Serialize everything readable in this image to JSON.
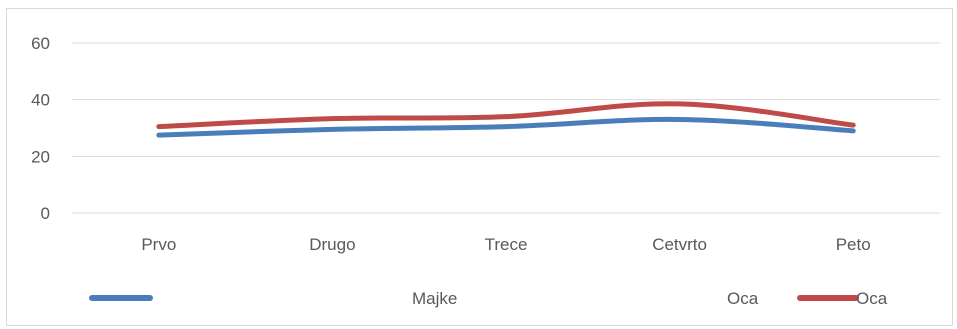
{
  "chart_data": {
    "type": "line",
    "categories": [
      "Prvo",
      "Drugo",
      "Trece",
      "Cetvrto",
      "Peto"
    ],
    "series": [
      {
        "name": "Majke",
        "values": [
          27.5,
          29.5,
          30.5,
          33,
          29
        ],
        "color": "#4a7ebb"
      },
      {
        "name": "Oca",
        "values": [
          30.5,
          33.3,
          34,
          38.5,
          31
        ],
        "color": "#be4b48"
      }
    ],
    "ylim": [
      0,
      60
    ],
    "yticks": [
      0,
      20,
      40,
      60
    ],
    "grid": true,
    "legend_position": "bottom",
    "legend": {
      "entry1_label": "Majke",
      "entry2_stray_label": "Oca",
      "entry2_label": "Oca"
    }
  }
}
